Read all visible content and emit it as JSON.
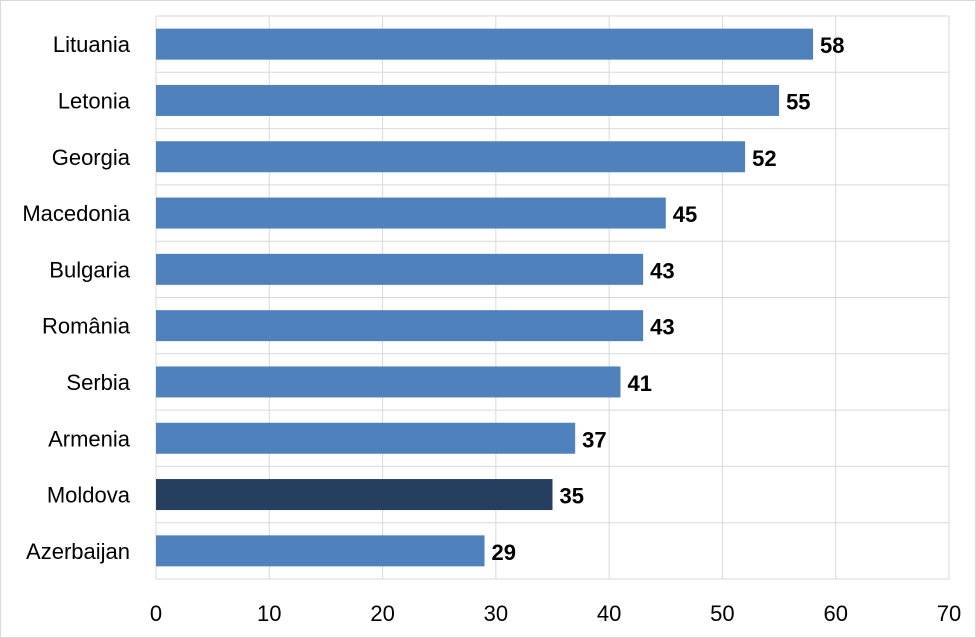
{
  "chart_data": {
    "type": "bar",
    "orientation": "horizontal",
    "categories": [
      "Lituania",
      "Letonia",
      "Georgia",
      "Macedonia",
      "Bulgaria",
      "România",
      "Serbia",
      "Armenia",
      "Moldova",
      "Azerbaijan"
    ],
    "values": [
      58,
      55,
      52,
      45,
      43,
      43,
      41,
      37,
      35,
      29
    ],
    "data_labels": [
      "58",
      "55",
      "52",
      "45",
      "43",
      "43",
      "41",
      "37",
      "35",
      "29"
    ],
    "highlight_category": "Moldova",
    "xlim": [
      0,
      70
    ],
    "x_ticks": [
      0,
      10,
      20,
      30,
      40,
      50,
      60,
      70
    ],
    "x_tick_labels": [
      "0",
      "10",
      "20",
      "30",
      "40",
      "50",
      "60",
      "70"
    ],
    "grid": true,
    "title": "",
    "xlabel": "",
    "ylabel": "",
    "colors": {
      "bar": "#4f81bd",
      "highlight": "#253f5f",
      "grid": "#d9d9d9"
    }
  }
}
